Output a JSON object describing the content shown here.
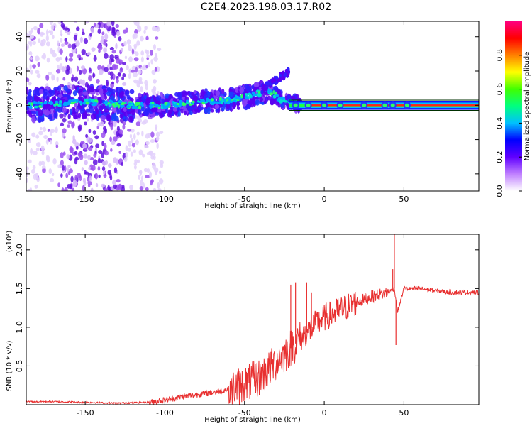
{
  "title": "C2E4.2023.198.03.17.R02",
  "chart_data": [
    {
      "type": "heatmap",
      "xlabel": "Height of straight line (km)",
      "ylabel": "Frequency (Hz)",
      "xlim": [
        -187,
        97
      ],
      "ylim": [
        -50,
        49
      ],
      "xticks": [
        -150,
        -100,
        -50,
        0,
        50
      ],
      "yticks": [
        -40,
        -20,
        0,
        20,
        40
      ],
      "colorbar": {
        "label": "Normalized spectral amplitude",
        "range": [
          0,
          1
        ],
        "ticks": [
          "0.0",
          "0.2",
          "0.4",
          "0.6",
          "0.8"
        ],
        "colors": [
          "#ffffff",
          "#c080ff",
          "#6000ff",
          "#0000ff",
          "#00c0ff",
          "#00ff80",
          "#40ff00",
          "#ffff00",
          "#ff8000",
          "#ff0000",
          "#ff0080"
        ]
      },
      "ridge": {
        "x": [
          -187,
          -170,
          -150,
          -130,
          -120,
          -100,
          -80,
          -60,
          -45,
          -35,
          -28,
          -22,
          -15,
          -5,
          0,
          20,
          40,
          60,
          97
        ],
        "y": [
          0,
          1,
          2,
          1,
          0,
          0,
          2,
          3,
          6,
          9,
          4,
          2,
          1,
          0,
          0,
          0,
          0,
          0,
          0
        ]
      }
    },
    {
      "type": "line",
      "xlabel": "Height of straight line (km)",
      "ylabel": "SNR (10 * v/v)",
      "y_multiplier": "(x10⁴)",
      "xlim": [
        -187,
        97
      ],
      "ylim": [
        0,
        2.2
      ],
      "xticks": [
        -150,
        -100,
        -50,
        0,
        50
      ],
      "yticks": [
        "0.5",
        "1.0",
        "1.5",
        "2.0"
      ],
      "line_color": "#e83030",
      "series": [
        {
          "name": "SNR",
          "x": [
            -187,
            -170,
            -150,
            -130,
            -110,
            -100,
            -90,
            -80,
            -70,
            -60,
            -50,
            -40,
            -35,
            -30,
            -25,
            -20,
            -15,
            -10,
            -5,
            0,
            10,
            20,
            30,
            40,
            44,
            46,
            50,
            60,
            70,
            80,
            97
          ],
          "y": [
            0.04,
            0.04,
            0.03,
            0.02,
            0.03,
            0.06,
            0.1,
            0.13,
            0.16,
            0.2,
            0.26,
            0.36,
            0.45,
            0.55,
            0.65,
            0.75,
            0.85,
            0.95,
            1.05,
            1.12,
            1.22,
            1.32,
            1.4,
            1.45,
            1.5,
            1.2,
            1.5,
            1.5,
            1.47,
            1.45,
            1.45
          ]
        }
      ],
      "spikes": [
        {
          "x": -18,
          "y": 1.58
        },
        {
          "x": -11,
          "y": 1.58
        },
        {
          "x": -21,
          "y": 1.55
        },
        {
          "x": -8,
          "y": 1.45
        },
        {
          "x": 44,
          "y": 2.2
        },
        {
          "x": 43,
          "y": 1.75
        },
        {
          "x": 45,
          "y": 0.77
        }
      ]
    }
  ]
}
